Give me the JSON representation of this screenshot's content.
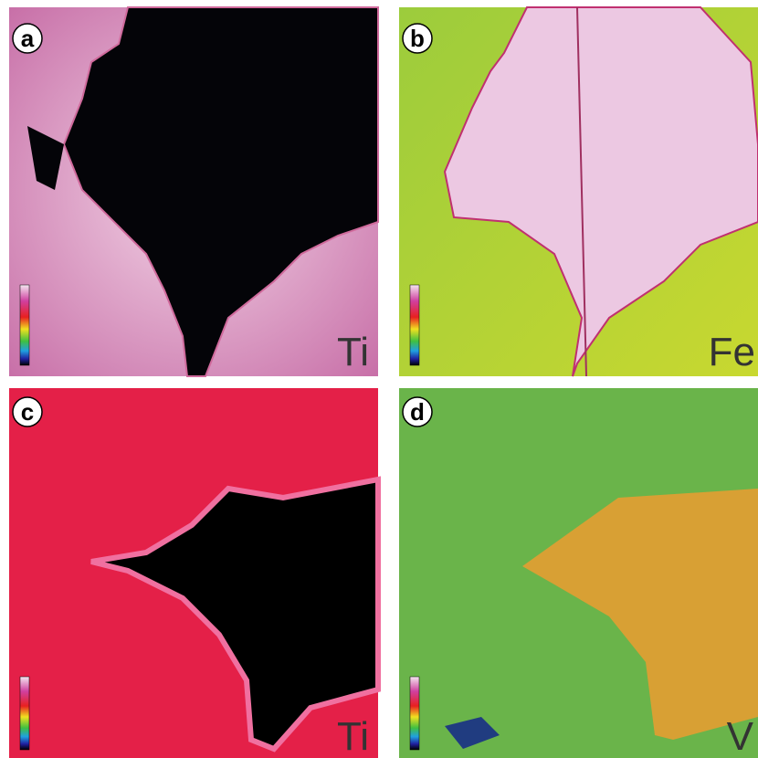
{
  "panels": [
    {
      "label": "a",
      "element": "Ti"
    },
    {
      "label": "b",
      "element": "Fe"
    },
    {
      "label": "c",
      "element": "Ti"
    },
    {
      "label": "d",
      "element": "V"
    }
  ]
}
